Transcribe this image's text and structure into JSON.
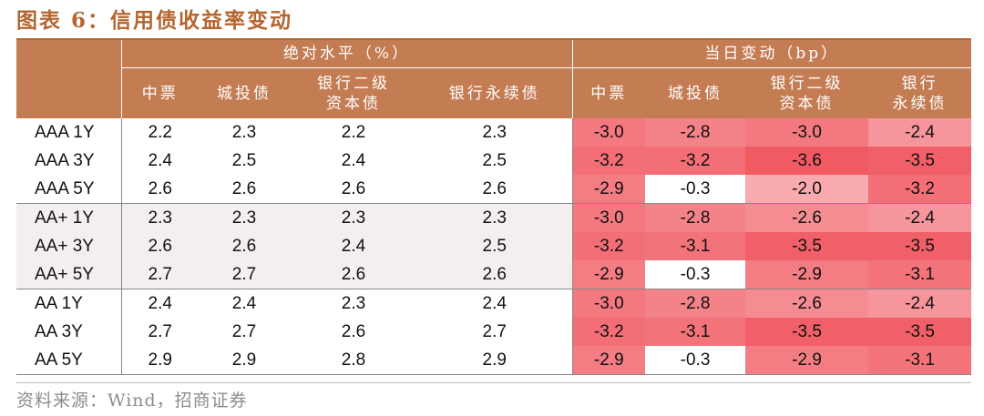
{
  "title": "图表 6：信用债收益率变动",
  "header": {
    "group_level": "绝对水平（%）",
    "group_change": "当日变动（bp）",
    "level_columns": [
      {
        "line1": "中票",
        "line2": ""
      },
      {
        "line1": "城投债",
        "line2": ""
      },
      {
        "line1": "银行二级",
        "line2": "资本债"
      },
      {
        "line1": "银行永续债",
        "line2": ""
      }
    ],
    "change_columns": [
      {
        "line1": "中票",
        "line2": ""
      },
      {
        "line1": "城投债",
        "line2": ""
      },
      {
        "line1": "银行二级",
        "line2": "资本债"
      },
      {
        "line1": "银行",
        "line2": "永续债"
      }
    ]
  },
  "rows": [
    {
      "label": "AAA 1Y",
      "level": [
        "2.2",
        "2.3",
        "2.2",
        "2.3"
      ],
      "change": [
        "-3.0",
        "-2.8",
        "-3.0",
        "-2.4"
      ]
    },
    {
      "label": "AAA 3Y",
      "level": [
        "2.4",
        "2.5",
        "2.4",
        "2.5"
      ],
      "change": [
        "-3.2",
        "-3.2",
        "-3.6",
        "-3.5"
      ]
    },
    {
      "label": "AAA 5Y",
      "level": [
        "2.6",
        "2.6",
        "2.6",
        "2.6"
      ],
      "change": [
        "-2.9",
        "-0.3",
        "-2.0",
        "-3.2"
      ]
    },
    {
      "label": "AA+ 1Y",
      "level": [
        "2.3",
        "2.3",
        "2.3",
        "2.3"
      ],
      "change": [
        "-3.0",
        "-2.8",
        "-2.6",
        "-2.4"
      ]
    },
    {
      "label": "AA+ 3Y",
      "level": [
        "2.6",
        "2.6",
        "2.4",
        "2.5"
      ],
      "change": [
        "-3.2",
        "-3.1",
        "-3.5",
        "-3.5"
      ]
    },
    {
      "label": "AA+ 5Y",
      "level": [
        "2.7",
        "2.7",
        "2.6",
        "2.6"
      ],
      "change": [
        "-2.9",
        "-0.3",
        "-2.9",
        "-3.1"
      ]
    },
    {
      "label": "AA 1Y",
      "level": [
        "2.4",
        "2.4",
        "2.3",
        "2.4"
      ],
      "change": [
        "-3.0",
        "-2.8",
        "-2.6",
        "-2.4"
      ]
    },
    {
      "label": "AA 3Y",
      "level": [
        "2.7",
        "2.7",
        "2.6",
        "2.7"
      ],
      "change": [
        "-3.2",
        "-3.1",
        "-3.5",
        "-3.5"
      ]
    },
    {
      "label": "AA 5Y",
      "level": [
        "2.9",
        "2.9",
        "2.8",
        "2.9"
      ],
      "change": [
        "-2.9",
        "-0.3",
        "-2.9",
        "-3.1"
      ]
    }
  ],
  "source": "资料来源：Wind，招商证券",
  "colors": {
    "accent": "#b5652f",
    "header_bg": "#c47c53",
    "heat_max": "#f15a63",
    "heat_min": "#ffffff"
  }
}
